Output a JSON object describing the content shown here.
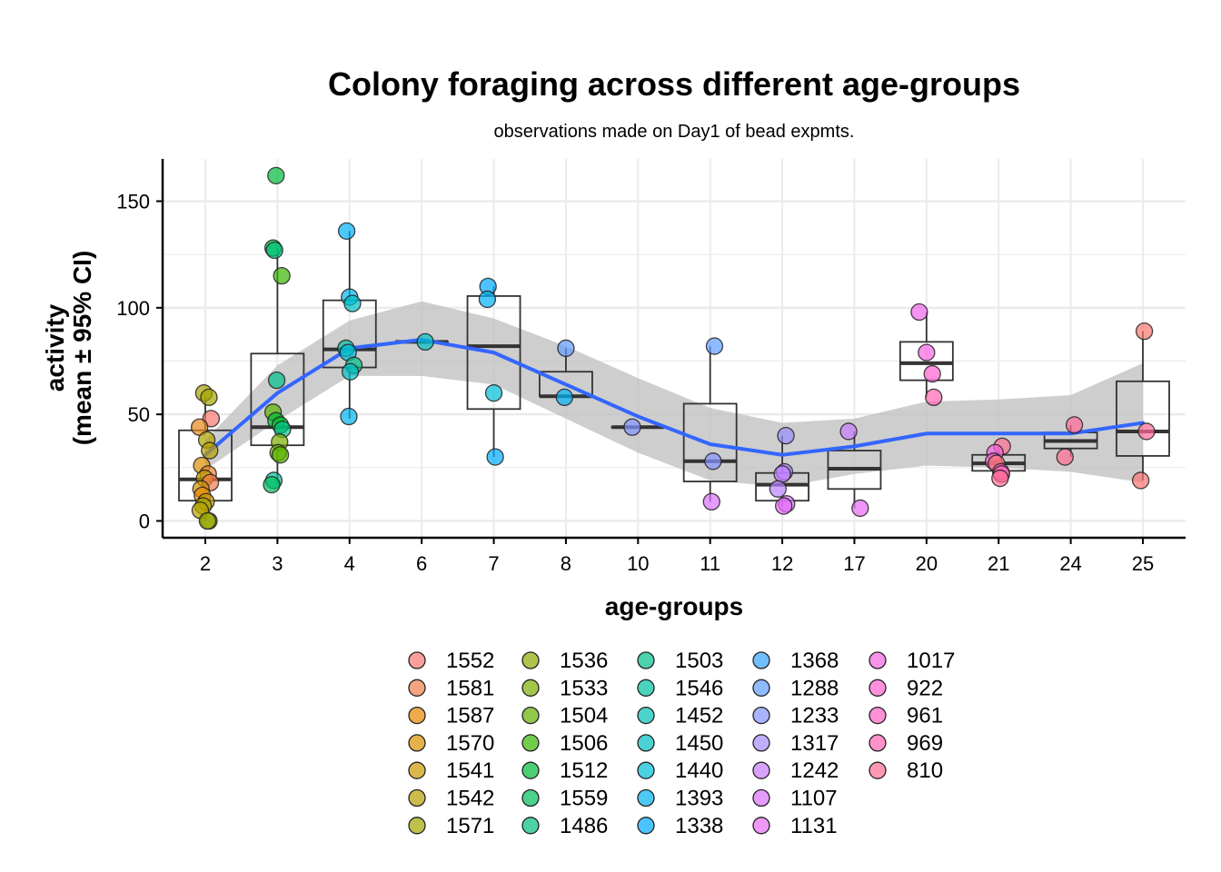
{
  "chart_data": {
    "type": "boxplot-jitter-smooth",
    "title": "Colony foraging across different age-groups",
    "subtitle": "observations made on Day1 of bead expmts.",
    "xlabel": "age-groups",
    "ylabel_line1": "activity",
    "ylabel_line2": "(mean ± 95% CI)",
    "categories": [
      "2",
      "3",
      "4",
      "6",
      "7",
      "8",
      "10",
      "11",
      "12",
      "17",
      "20",
      "21",
      "24",
      "25"
    ],
    "ylim": [
      -8,
      170
    ],
    "yticks": [
      0,
      50,
      100,
      150
    ],
    "grid": true,
    "legend_position": "bottom",
    "boxes": [
      {
        "q1": 9.5,
        "median": 19.5,
        "q3": 42.5,
        "whisker_low": 0,
        "whisker_high": 58
      },
      {
        "q1": 35.5,
        "median": 44,
        "q3": 78.5,
        "whisker_low": 17,
        "whisker_high": 128
      },
      {
        "q1": 72,
        "median": 80.5,
        "q3": 103.5,
        "whisker_low": 48,
        "whisker_high": 136
      },
      {
        "q1": 84,
        "median": 84,
        "q3": 84,
        "whisker_low": 84,
        "whisker_high": 84
      },
      {
        "q1": 52.5,
        "median": 82,
        "q3": 105.5,
        "whisker_low": 30,
        "whisker_high": 110
      },
      {
        "q1": 58.5,
        "median": 58.5,
        "q3": 70,
        "whisker_low": 58,
        "whisker_high": 81
      },
      {
        "q1": 44,
        "median": 44,
        "q3": 44,
        "whisker_low": 44,
        "whisker_high": 44
      },
      {
        "q1": 18.5,
        "median": 28,
        "q3": 55,
        "whisker_low": 9,
        "whisker_high": 82
      },
      {
        "q1": 9.5,
        "median": 17,
        "q3": 22.5,
        "whisker_low": 7,
        "whisker_high": 40
      },
      {
        "q1": 15,
        "median": 24.5,
        "q3": 33,
        "whisker_low": 6,
        "whisker_high": 42
      },
      {
        "q1": 66,
        "median": 74,
        "q3": 84,
        "whisker_low": 58,
        "whisker_high": 98
      },
      {
        "q1": 23.5,
        "median": 27,
        "q3": 31,
        "whisker_low": 20,
        "whisker_high": 35
      },
      {
        "q1": 34,
        "median": 37.5,
        "q3": 41.5,
        "whisker_low": 30,
        "whisker_high": 45
      },
      {
        "q1": 30.5,
        "median": 42,
        "q3": 65.5,
        "whisker_low": 19,
        "whisker_high": 89
      }
    ],
    "points": [
      {
        "cat": 0,
        "dx": -0.02,
        "y": 60,
        "color": "#A9A100"
      },
      {
        "cat": 0,
        "dx": 0.05,
        "y": 58,
        "color": "#A3A500"
      },
      {
        "cat": 0,
        "dx": 0.08,
        "y": 48,
        "color": "#F8766D"
      },
      {
        "cat": 0,
        "dx": -0.08,
        "y": 44,
        "color": "#E7861B"
      },
      {
        "cat": 0,
        "dx": 0.02,
        "y": 38,
        "color": "#AEA200"
      },
      {
        "cat": 0,
        "dx": 0.06,
        "y": 33,
        "color": "#B79F00"
      },
      {
        "cat": 0,
        "dx": -0.05,
        "y": 26,
        "color": "#DB8E00"
      },
      {
        "cat": 0,
        "dx": 0.04,
        "y": 22,
        "color": "#EA8331"
      },
      {
        "cat": 0,
        "dx": -0.01,
        "y": 20,
        "color": "#C09B00"
      },
      {
        "cat": 0,
        "dx": 0.07,
        "y": 18,
        "color": "#F47C4A"
      },
      {
        "cat": 0,
        "dx": -0.06,
        "y": 15,
        "color": "#D39200"
      },
      {
        "cat": 0,
        "dx": -0.04,
        "y": 12,
        "color": "#E58700"
      },
      {
        "cat": 0,
        "dx": 0.01,
        "y": 9,
        "color": "#C99800"
      },
      {
        "cat": 0,
        "dx": -0.03,
        "y": 7,
        "color": "#A3A500"
      },
      {
        "cat": 0,
        "dx": -0.07,
        "y": 5,
        "color": "#B8A100"
      },
      {
        "cat": 0,
        "dx": 0.05,
        "y": 0,
        "color": "#9AA500"
      },
      {
        "cat": 0,
        "dx": 0.03,
        "y": 0,
        "color": "#93AA00"
      },
      {
        "cat": 1,
        "dx": -0.02,
        "y": 162,
        "color": "#00BA38"
      },
      {
        "cat": 1,
        "dx": -0.06,
        "y": 128,
        "color": "#00BA38"
      },
      {
        "cat": 1,
        "dx": -0.04,
        "y": 127,
        "color": "#00BF7D"
      },
      {
        "cat": 1,
        "dx": 0.06,
        "y": 115,
        "color": "#39B600"
      },
      {
        "cat": 1,
        "dx": -0.01,
        "y": 66,
        "color": "#00C08B"
      },
      {
        "cat": 1,
        "dx": -0.06,
        "y": 51,
        "color": "#5BB300"
      },
      {
        "cat": 1,
        "dx": -0.02,
        "y": 47,
        "color": "#00BA38"
      },
      {
        "cat": 1,
        "dx": 0.04,
        "y": 45,
        "color": "#00B81F"
      },
      {
        "cat": 1,
        "dx": 0.07,
        "y": 43,
        "color": "#00C08B"
      },
      {
        "cat": 1,
        "dx": 0.03,
        "y": 37,
        "color": "#7CAE00"
      },
      {
        "cat": 1,
        "dx": 0.01,
        "y": 32,
        "color": "#64B200"
      },
      {
        "cat": 1,
        "dx": 0.04,
        "y": 31,
        "color": "#5BB300"
      },
      {
        "cat": 1,
        "dx": -0.05,
        "y": 19,
        "color": "#00C19A"
      },
      {
        "cat": 1,
        "dx": -0.08,
        "y": 17,
        "color": "#00BD5C"
      },
      {
        "cat": 2,
        "dx": -0.04,
        "y": 136,
        "color": "#00B0F6"
      },
      {
        "cat": 2,
        "dx": 0.0,
        "y": 105,
        "color": "#00B6EB"
      },
      {
        "cat": 2,
        "dx": 0.04,
        "y": 102,
        "color": "#00BFC4"
      },
      {
        "cat": 2,
        "dx": -0.05,
        "y": 81,
        "color": "#00C1A3"
      },
      {
        "cat": 2,
        "dx": -0.02,
        "y": 79,
        "color": "#00BCD8"
      },
      {
        "cat": 2,
        "dx": 0.06,
        "y": 73,
        "color": "#00C08B"
      },
      {
        "cat": 2,
        "dx": 0.01,
        "y": 70,
        "color": "#00BFC4"
      },
      {
        "cat": 2,
        "dx": -0.01,
        "y": 49,
        "color": "#00B4EF"
      },
      {
        "cat": 3,
        "dx": 0.05,
        "y": 84,
        "color": "#00BFC4"
      },
      {
        "cat": 4,
        "dx": -0.08,
        "y": 110,
        "color": "#00A9FF"
      },
      {
        "cat": 4,
        "dx": -0.09,
        "y": 104,
        "color": "#00B0F6"
      },
      {
        "cat": 4,
        "dx": 0.0,
        "y": 60,
        "color": "#00BCD8"
      },
      {
        "cat": 4,
        "dx": 0.02,
        "y": 30,
        "color": "#00A9FF"
      },
      {
        "cat": 5,
        "dx": 0.0,
        "y": 81,
        "color": "#619CFF"
      },
      {
        "cat": 5,
        "dx": -0.02,
        "y": 58,
        "color": "#00B0F6"
      },
      {
        "cat": 6,
        "dx": -0.08,
        "y": 44,
        "color": "#8494FF"
      },
      {
        "cat": 7,
        "dx": 0.06,
        "y": 82,
        "color": "#619CFF"
      },
      {
        "cat": 7,
        "dx": 0.04,
        "y": 28,
        "color": "#8494FF"
      },
      {
        "cat": 7,
        "dx": 0.02,
        "y": 9,
        "color": "#DB72FB"
      },
      {
        "cat": 8,
        "dx": 0.05,
        "y": 40,
        "color": "#9590FF"
      },
      {
        "cat": 8,
        "dx": 0.03,
        "y": 23,
        "color": "#A58AFF"
      },
      {
        "cat": 8,
        "dx": 0.0,
        "y": 22,
        "color": "#C77CFF"
      },
      {
        "cat": 8,
        "dx": -0.06,
        "y": 15,
        "color": "#B983FF"
      },
      {
        "cat": 8,
        "dx": 0.06,
        "y": 8,
        "color": "#D376FF"
      },
      {
        "cat": 8,
        "dx": 0.02,
        "y": 7,
        "color": "#E76BF3"
      },
      {
        "cat": 9,
        "dx": -0.08,
        "y": 42,
        "color": "#C77CFF"
      },
      {
        "cat": 9,
        "dx": 0.08,
        "y": 6,
        "color": "#E76BF3"
      },
      {
        "cat": 10,
        "dx": -0.1,
        "y": 98,
        "color": "#EF67EB"
      },
      {
        "cat": 10,
        "dx": 0.0,
        "y": 79,
        "color": "#F564E3"
      },
      {
        "cat": 10,
        "dx": 0.08,
        "y": 69,
        "color": "#FD61D1"
      },
      {
        "cat": 10,
        "dx": 0.1,
        "y": 58,
        "color": "#FF64B0"
      },
      {
        "cat": 11,
        "dx": 0.05,
        "y": 35,
        "color": "#FF6C91"
      },
      {
        "cat": 11,
        "dx": -0.05,
        "y": 32,
        "color": "#F564E3"
      },
      {
        "cat": 11,
        "dx": -0.07,
        "y": 28,
        "color": "#FD61D1"
      },
      {
        "cat": 11,
        "dx": -0.03,
        "y": 27,
        "color": "#F8766D"
      },
      {
        "cat": 11,
        "dx": 0.03,
        "y": 23,
        "color": "#FF61C3"
      },
      {
        "cat": 11,
        "dx": 0.04,
        "y": 22,
        "color": "#FF62BC"
      },
      {
        "cat": 11,
        "dx": 0.02,
        "y": 20,
        "color": "#FF6C91"
      },
      {
        "cat": 12,
        "dx": 0.05,
        "y": 45,
        "color": "#FF6A98"
      },
      {
        "cat": 12,
        "dx": -0.08,
        "y": 30,
        "color": "#FF6C91"
      },
      {
        "cat": 13,
        "dx": 0.02,
        "y": 89,
        "color": "#F8766D"
      },
      {
        "cat": 13,
        "dx": 0.05,
        "y": 42,
        "color": "#FF6A98"
      },
      {
        "cat": 13,
        "dx": -0.03,
        "y": 19,
        "color": "#FA7474"
      }
    ],
    "smooth_line": [
      {
        "x": 0,
        "y": 31
      },
      {
        "x": 1,
        "y": 60
      },
      {
        "x": 2,
        "y": 81
      },
      {
        "x": 3,
        "y": 85
      },
      {
        "x": 4,
        "y": 79
      },
      {
        "x": 5,
        "y": 64
      },
      {
        "x": 6,
        "y": 49
      },
      {
        "x": 7,
        "y": 36
      },
      {
        "x": 8,
        "y": 31
      },
      {
        "x": 9,
        "y": 35
      },
      {
        "x": 10,
        "y": 41
      },
      {
        "x": 11,
        "y": 41
      },
      {
        "x": 12,
        "y": 41
      },
      {
        "x": 13,
        "y": 46
      }
    ],
    "ci_upper": [
      38,
      73,
      94,
      103,
      95,
      82,
      67,
      53,
      46,
      48,
      56,
      57,
      59,
      74
    ],
    "ci_lower": [
      24,
      47,
      68,
      68,
      64,
      48,
      32,
      19,
      16,
      22,
      26,
      25,
      23,
      18
    ],
    "legend": [
      {
        "label": "1552",
        "color": "#F8766D"
      },
      {
        "label": "1581",
        "color": "#F07E4A"
      },
      {
        "label": "1587",
        "color": "#E58700"
      },
      {
        "label": "1570",
        "color": "#D89000"
      },
      {
        "label": "1541",
        "color": "#C99800"
      },
      {
        "label": "1542",
        "color": "#B79F00"
      },
      {
        "label": "1571",
        "color": "#A3A500"
      },
      {
        "label": "1536",
        "color": "#8BAB00"
      },
      {
        "label": "1533",
        "color": "#7CAE00"
      },
      {
        "label": "1504",
        "color": "#64B200"
      },
      {
        "label": "1506",
        "color": "#39B600"
      },
      {
        "label": "1512",
        "color": "#00BA38"
      },
      {
        "label": "1559",
        "color": "#00BD5C"
      },
      {
        "label": "1486",
        "color": "#00BF7D"
      },
      {
        "label": "1503",
        "color": "#00C08B"
      },
      {
        "label": "1546",
        "color": "#00C1A3"
      },
      {
        "label": "1452",
        "color": "#00C0B8"
      },
      {
        "label": "1450",
        "color": "#00BFC4"
      },
      {
        "label": "1440",
        "color": "#00BCD8"
      },
      {
        "label": "1393",
        "color": "#00B4EF"
      },
      {
        "label": "1338",
        "color": "#00A9FF"
      },
      {
        "label": "1368",
        "color": "#35A2FF"
      },
      {
        "label": "1288",
        "color": "#619CFF"
      },
      {
        "label": "1233",
        "color": "#8494FF"
      },
      {
        "label": "1317",
        "color": "#A58AFF"
      },
      {
        "label": "1242",
        "color": "#C77CFF"
      },
      {
        "label": "1107",
        "color": "#DB72FB"
      },
      {
        "label": "1131",
        "color": "#E76BF3"
      },
      {
        "label": "1017",
        "color": "#F564E3"
      },
      {
        "label": "922",
        "color": "#FD61D1"
      },
      {
        "label": "961",
        "color": "#FF61C3"
      },
      {
        "label": "969",
        "color": "#FF64B0"
      },
      {
        "label": "810",
        "color": "#FF6C91"
      }
    ],
    "colors": {
      "smooth_line": "#3366FF",
      "ci_band": "#BEBEBE",
      "grid": "#EBEBEB",
      "box_stroke": "#333333"
    }
  }
}
